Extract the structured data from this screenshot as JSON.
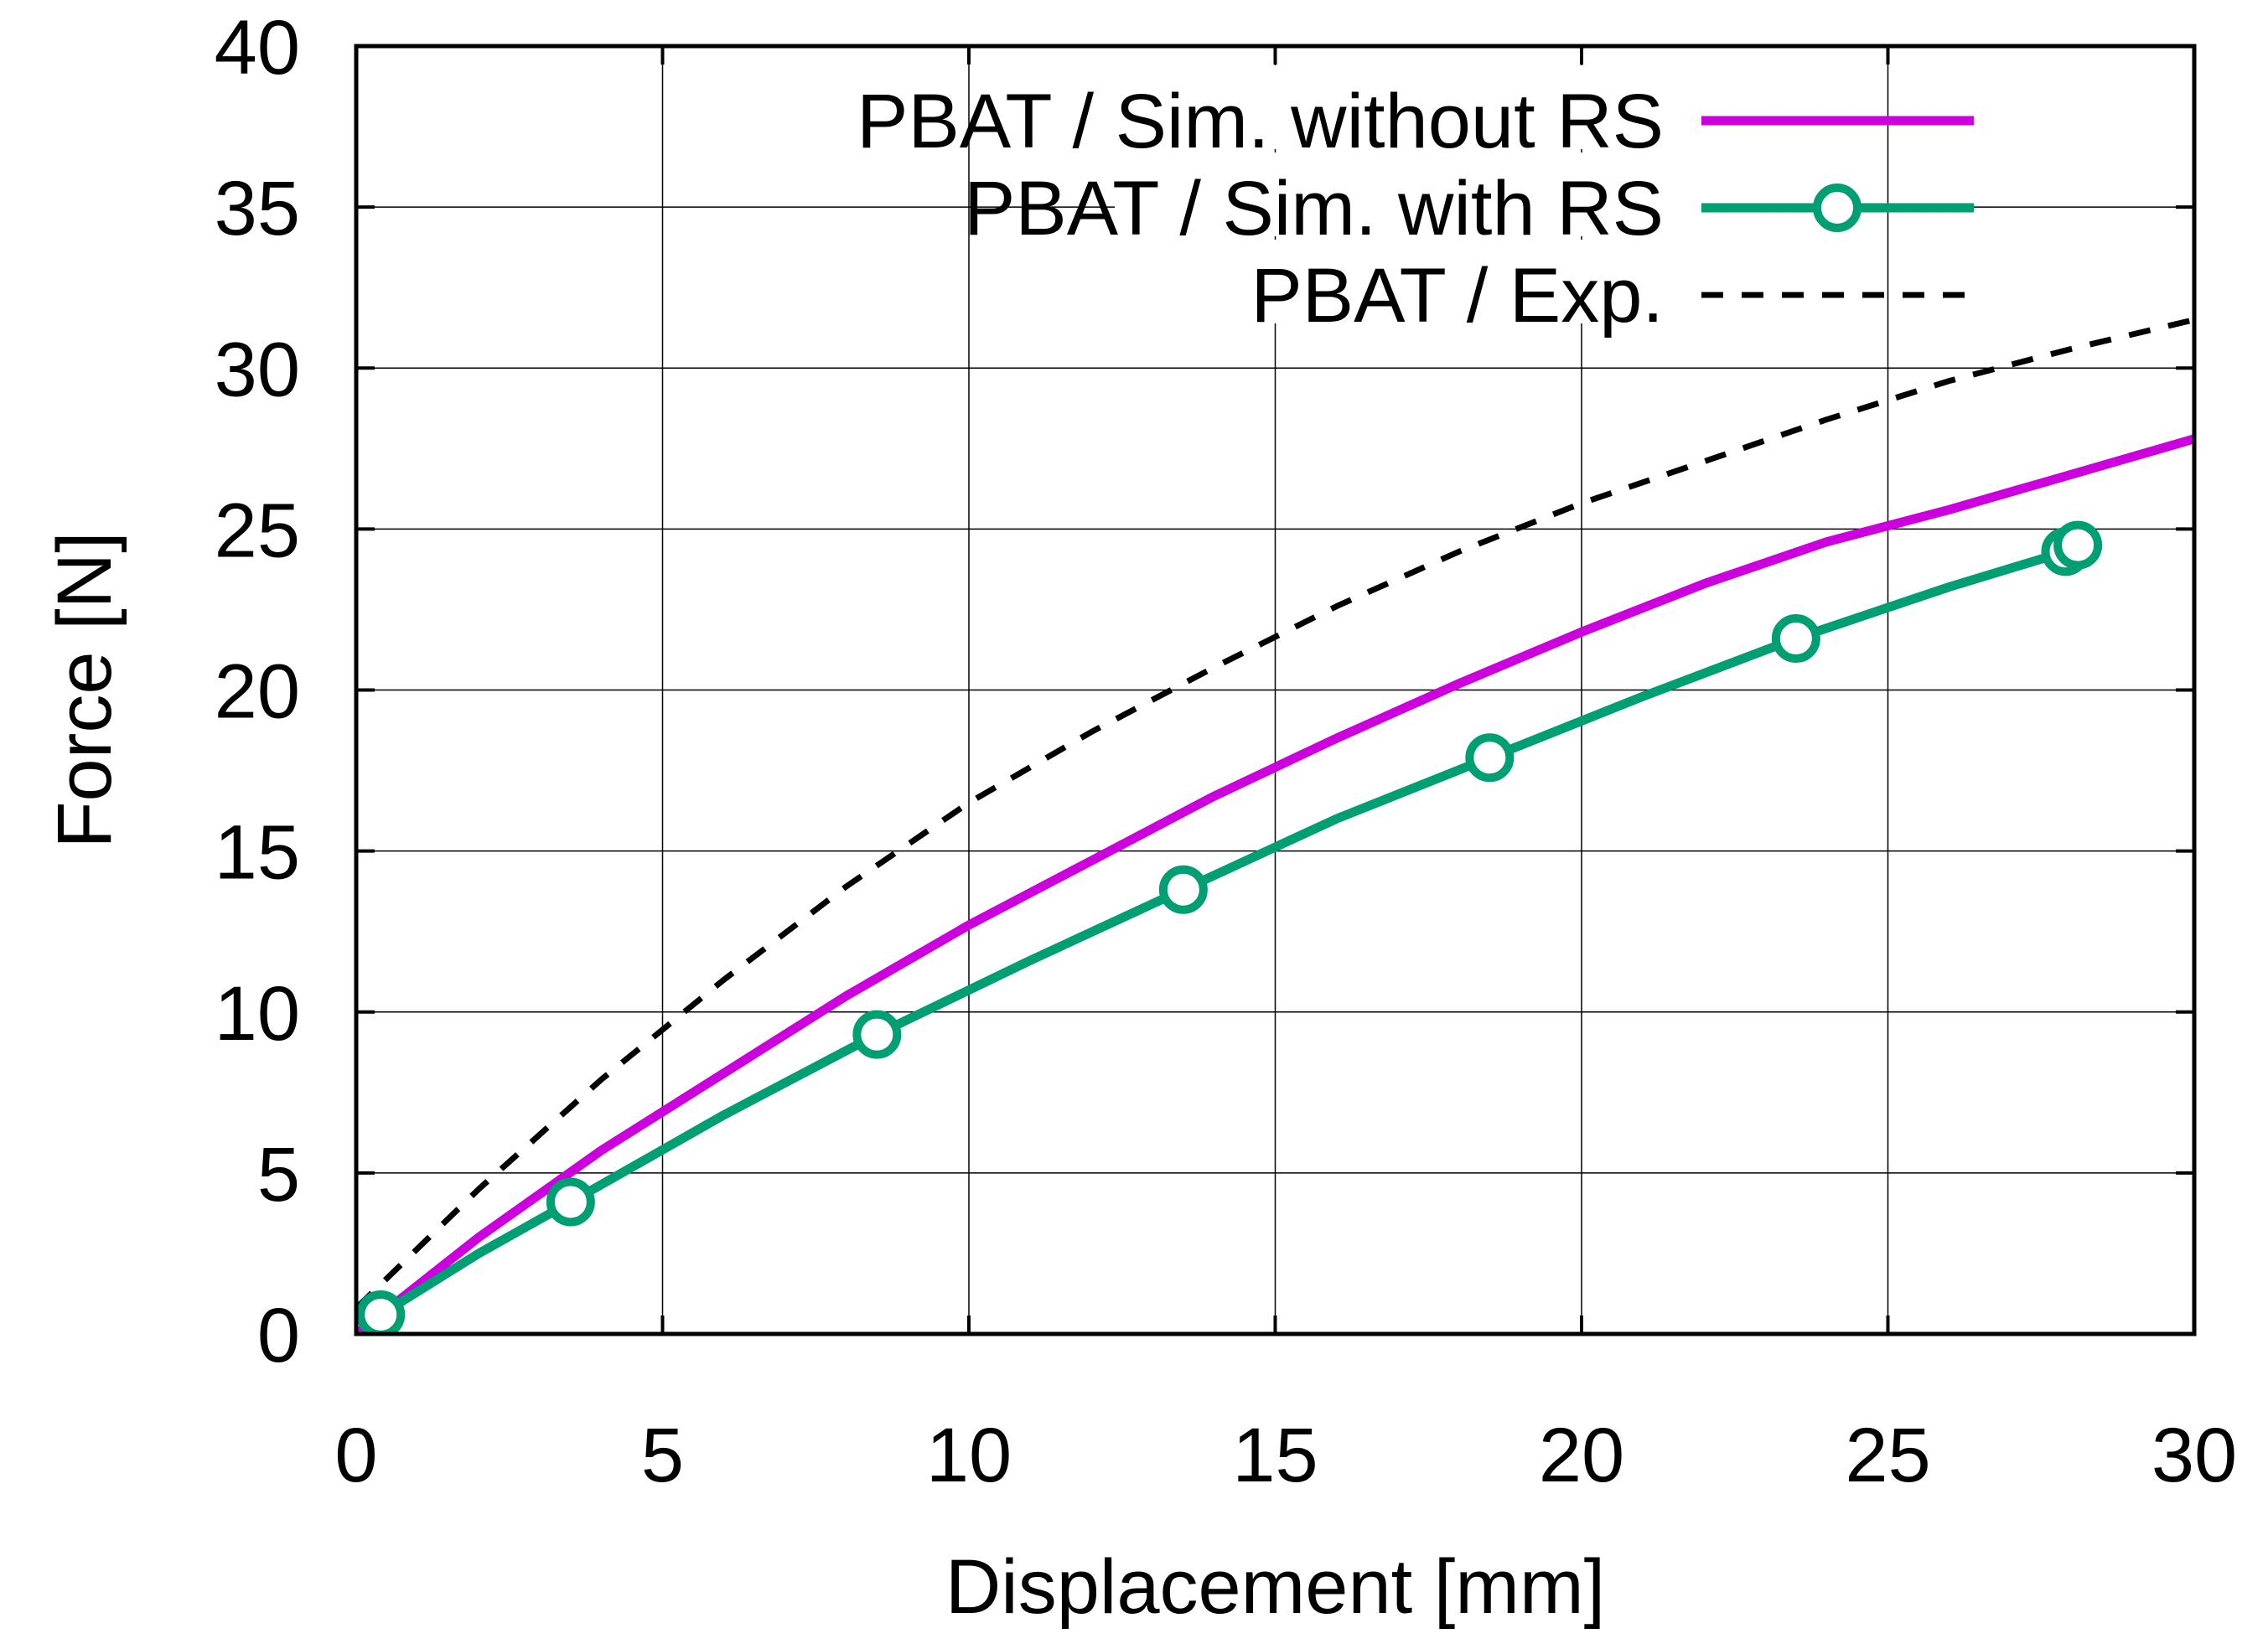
{
  "chart_data": {
    "type": "line",
    "title": "",
    "xlabel": "Displacement [mm]",
    "ylabel": "Force [N]",
    "xlim": [
      0,
      30
    ],
    "ylim": [
      0,
      40
    ],
    "xticks": [
      0,
      5,
      10,
      15,
      20,
      25,
      30
    ],
    "yticks": [
      0,
      5,
      10,
      15,
      20,
      25,
      30,
      35,
      40
    ],
    "grid": true,
    "legend_position": "top-right",
    "series": [
      {
        "name": "PBAT / Sim. without RS",
        "color": "#cc00dd",
        "style": "solid",
        "marker": "none",
        "x": [
          0,
          2,
          4,
          6,
          8,
          10,
          12,
          14,
          16,
          18,
          20,
          22,
          24,
          26,
          28,
          30
        ],
        "y": [
          0,
          3.0,
          5.7,
          8.1,
          10.5,
          12.7,
          14.7,
          16.7,
          18.5,
          20.2,
          21.8,
          23.3,
          24.6,
          25.6,
          26.7,
          27.8
        ]
      },
      {
        "name": "PBAT / Sim. with RS",
        "color": "#009e73",
        "style": "solid",
        "marker": "circle",
        "x": [
          0.4,
          2,
          3.5,
          6,
          8.5,
          11,
          13.5,
          16,
          18.5,
          21,
          23.5,
          26,
          27.9,
          28.1
        ],
        "y": [
          0.6,
          2.5,
          4.1,
          6.8,
          9.3,
          11.6,
          13.8,
          16.0,
          17.9,
          19.8,
          21.6,
          23.2,
          24.3,
          24.5
        ]
      },
      {
        "name": "PBAT / Exp.",
        "color": "#000000",
        "style": "dashed",
        "marker": "none",
        "x": [
          0,
          2,
          4,
          6,
          8,
          10,
          12,
          14,
          16,
          18,
          20,
          22,
          24,
          26,
          28,
          30
        ],
        "y": [
          0.8,
          4.5,
          7.9,
          11.0,
          13.9,
          16.5,
          18.7,
          20.7,
          22.6,
          24.3,
          25.8,
          27.1,
          28.4,
          29.6,
          30.6,
          31.5
        ]
      }
    ]
  }
}
